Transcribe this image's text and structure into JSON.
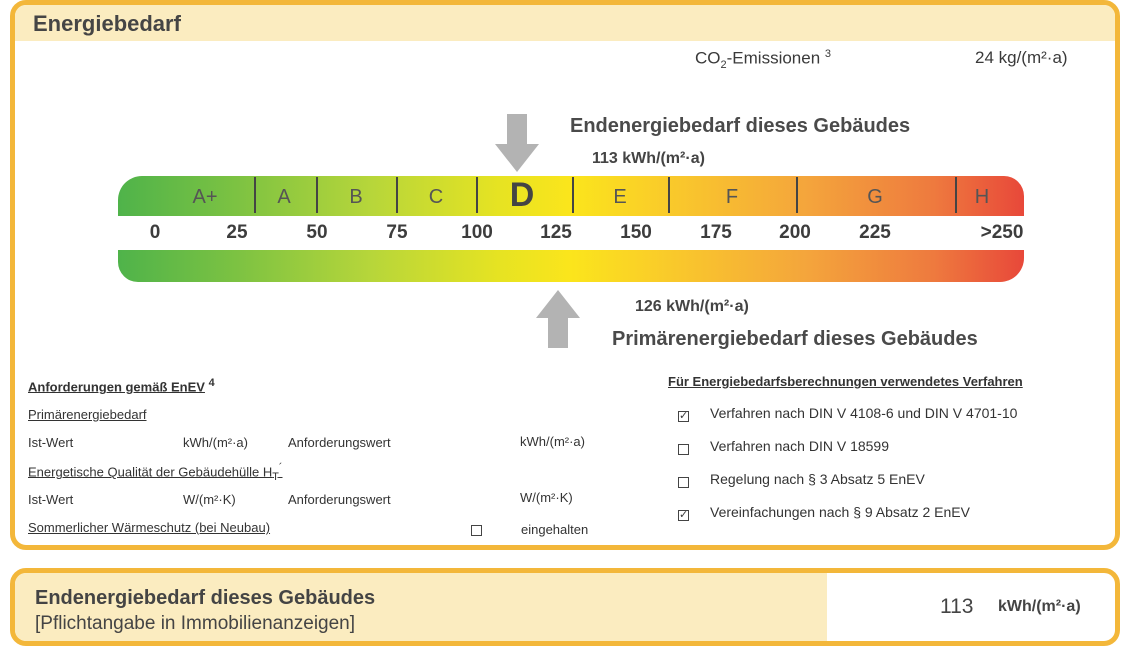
{
  "header": {
    "title": "Energiebedarf"
  },
  "co2": {
    "label_pre": "CO",
    "label_sub": "2",
    "label_post": "-Emissionen",
    "footnote": "3",
    "value": "24 kg/(m²·a)"
  },
  "endenergie": {
    "title": "Endenergiebedarf dieses Gebäudes",
    "value": "113 kWh/(m²·a)"
  },
  "primaerenergie": {
    "title": "Primärenergiebedarf dieses Gebäudes",
    "value": "126 kWh/(m²·a)"
  },
  "scale": {
    "classes": [
      "A+",
      "A",
      "B",
      "C",
      "D",
      "E",
      "F",
      "G",
      "H"
    ],
    "highlighted_class": "D",
    "ticks": [
      "0",
      "25",
      "50",
      "75",
      "100",
      "125",
      "150",
      "175",
      "200",
      "225",
      ">250"
    ],
    "endenergie_marker_value": 113,
    "primaerenergie_marker_value": 126
  },
  "requirements": {
    "heading": "Anforderungen gemäß EnEV",
    "heading_footnote": "4",
    "primary_label": "Primärenergiebedarf",
    "ist_wert": "Ist-Wert",
    "unit_kwh": "kWh/(m²·a)",
    "anforderungswert": "Anforderungswert",
    "ht_label": "Energetische Qualität der Gebäudehülle H",
    "ht_sub": "T",
    "ht_sup": "´",
    "unit_wk": "W/(m²·K)",
    "summer_label": "Sommerlicher Wärmeschutz (bei Neubau)",
    "summer_status": "eingehalten",
    "summer_checked": false
  },
  "method": {
    "heading": "Für Energiebedarfsberechnungen verwendetes Verfahren",
    "items": [
      {
        "label": "Verfahren nach DIN V 4108-6 und DIN V 4701-10",
        "checked": true
      },
      {
        "label": "Verfahren nach DIN V 18599",
        "checked": false
      },
      {
        "label": "Regelung nach § 3 Absatz 5 EnEV",
        "checked": false
      },
      {
        "label": "Vereinfachungen nach § 9 Absatz 2 EnEV",
        "checked": true
      }
    ]
  },
  "footer": {
    "title": "Endenergiebedarf dieses Gebäudes",
    "subtitle": "[Pflichtangabe in Immobilienanzeigen]",
    "value": "113",
    "unit": "kWh/(m²·a)"
  }
}
